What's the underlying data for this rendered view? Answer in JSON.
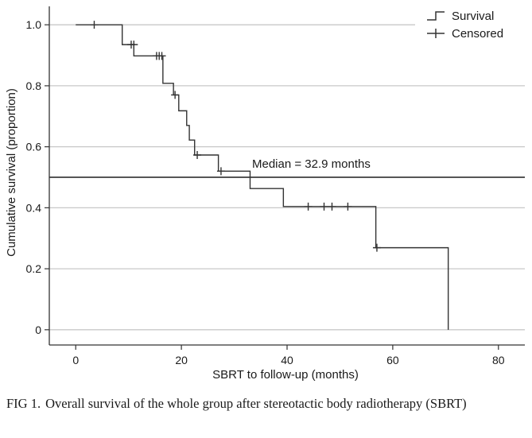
{
  "chart_data": {
    "type": "line",
    "xlabel": "SBRT to follow-up (months)",
    "ylabel": "Cumulative survival (proportion)",
    "xlim": [
      -5,
      85
    ],
    "ylim": [
      -0.05,
      1.05
    ],
    "x_ticks": [
      0,
      20,
      40,
      60,
      80
    ],
    "y_ticks": [
      0,
      0.2,
      0.4,
      0.6,
      0.8,
      1.0
    ],
    "x_tick_labels": [
      "0",
      "20",
      "40",
      "60",
      "80"
    ],
    "y_tick_labels": [
      "0",
      "0.2",
      "0.4",
      "0.6",
      "0.8",
      "1.0"
    ],
    "grid": "horizontal",
    "legend_position": "top-right",
    "series": [
      {
        "name": "Survival",
        "style": "step",
        "steps": [
          [
            0,
            1.0
          ],
          [
            8.8,
            0.935
          ],
          [
            11.0,
            0.898
          ],
          [
            16.5,
            0.808
          ],
          [
            18.5,
            0.77
          ],
          [
            19.5,
            0.718
          ],
          [
            21.0,
            0.67
          ],
          [
            21.5,
            0.622
          ],
          [
            22.5,
            0.573
          ],
          [
            27.0,
            0.52
          ],
          [
            33.0,
            0.463
          ],
          [
            39.3,
            0.404
          ],
          [
            56.8,
            0.269
          ],
          [
            70.5,
            0.0
          ]
        ]
      },
      {
        "name": "Censored",
        "style": "marker",
        "points": [
          [
            3.5,
            1.0
          ],
          [
            10.5,
            0.935
          ],
          [
            11.0,
            0.935
          ],
          [
            15.3,
            0.898
          ],
          [
            15.8,
            0.898
          ],
          [
            16.3,
            0.898
          ],
          [
            18.8,
            0.77
          ],
          [
            23.0,
            0.573
          ],
          [
            27.5,
            0.52
          ],
          [
            44.0,
            0.404
          ],
          [
            47.0,
            0.404
          ],
          [
            48.5,
            0.404
          ],
          [
            51.5,
            0.404
          ],
          [
            57.0,
            0.269
          ]
        ]
      }
    ],
    "reference_line": {
      "y": 0.5,
      "label": "Median = 32.9 months"
    }
  },
  "caption": {
    "label": "FIG 1.",
    "text": "Overall survival of the whole group after stereotactic body radiotherapy (SBRT)"
  }
}
